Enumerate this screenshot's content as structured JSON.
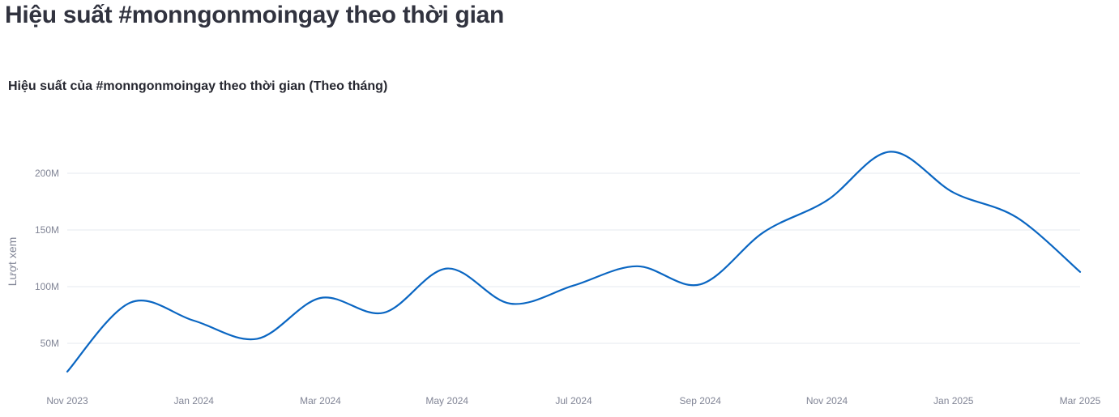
{
  "page": {
    "title": "Hiệu suất #monngonmoingay theo thời gian"
  },
  "colors": {
    "series": "#0a66c2",
    "grid": "#e6e9ef",
    "tick_text": "#808495"
  },
  "chart_data": {
    "type": "line",
    "title": "Hiệu suất của #monngonmoingay theo thời gian (Theo tháng)",
    "xlabel": "",
    "ylabel": "Lượt xem",
    "x_ticks": [
      "Nov 2023",
      "Jan 2024",
      "Mar 2024",
      "May 2024",
      "Jul 2024",
      "Sep 2024",
      "Nov 2024",
      "Jan 2025",
      "Mar 2025"
    ],
    "y_ticks": [
      {
        "value": 50000000,
        "label": "50M"
      },
      {
        "value": 100000000,
        "label": "100M"
      },
      {
        "value": 150000000,
        "label": "150M"
      },
      {
        "value": 200000000,
        "label": "200M"
      }
    ],
    "ylim": [
      0,
      240000000
    ],
    "grid": true,
    "interpolation": "smooth",
    "series": [
      {
        "x": [
          "2023-11",
          "2023-12",
          "2024-01",
          "2024-02",
          "2024-03",
          "2024-04",
          "2024-05",
          "2024-06",
          "2024-07",
          "2024-08",
          "2024-09",
          "2024-10",
          "2024-11",
          "2024-12",
          "2025-01",
          "2025-02",
          "2025-03"
        ],
        "values": [
          25000000,
          86000000,
          70000000,
          54000000,
          90000000,
          77000000,
          116000000,
          85000000,
          101000000,
          118000000,
          102000000,
          148000000,
          176000000,
          219000000,
          183000000,
          161000000,
          113000000
        ]
      }
    ]
  }
}
